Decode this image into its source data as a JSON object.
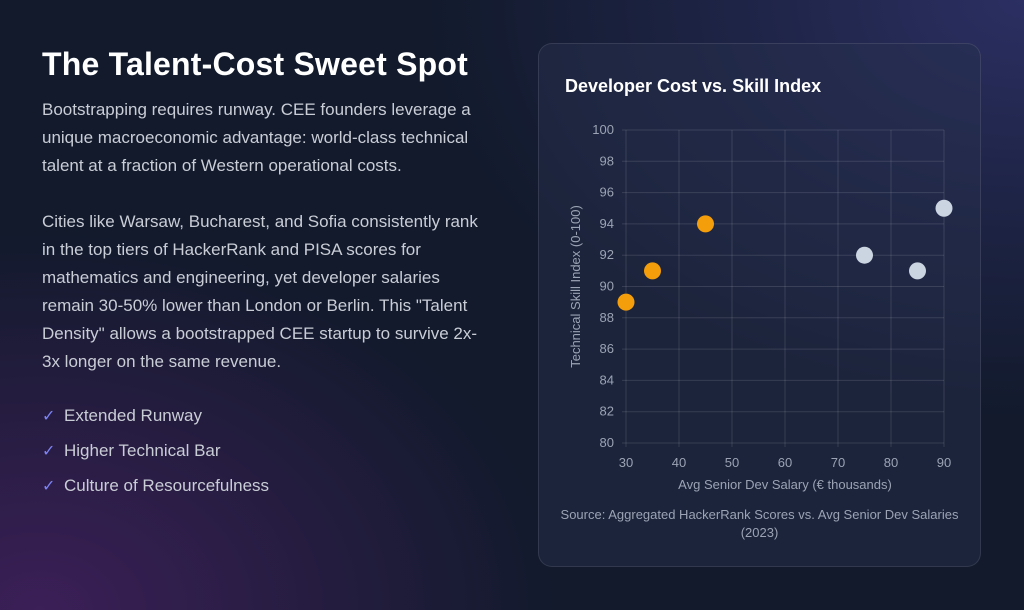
{
  "heading": "The Talent-Cost Sweet Spot",
  "paragraphs": [
    "Bootstrapping requires runway. CEE founders leverage a unique macroeconomic advantage: world-class technical talent at a fraction of Western operational costs.",
    "Cities like Warsaw, Bucharest, and Sofia consistently rank in the top tiers of HackerRank and PISA scores for mathematics and engineering, yet developer salaries remain 30-50% lower than London or Berlin. This \"Talent Density\" allows a bootstrapped CEE startup to survive 2x-3x longer on the same revenue."
  ],
  "checklist": {
    "icon": "✓",
    "items": [
      "Extended Runway",
      "Higher Technical Bar",
      "Culture of Resourcefulness"
    ]
  },
  "chart_data": {
    "type": "scatter",
    "title": "Developer Cost vs. Skill Index",
    "xlabel": "Avg Senior Dev Salary (€ thousands)",
    "ylabel": "Technical Skill Index (0-100)",
    "xlim": [
      30,
      90
    ],
    "ylim": [
      80,
      100
    ],
    "xticks": [
      30,
      40,
      50,
      60,
      70,
      80,
      90
    ],
    "yticks": [
      80,
      82,
      84,
      86,
      88,
      90,
      92,
      94,
      96,
      98,
      100
    ],
    "grid": true,
    "series": [
      {
        "color": "#f59e0b",
        "points": [
          [
            30,
            89
          ],
          [
            35,
            91
          ],
          [
            45,
            94
          ]
        ]
      },
      {
        "color": "#cbd5e1",
        "points": [
          [
            75,
            92
          ],
          [
            85,
            91
          ],
          [
            90,
            95
          ]
        ]
      }
    ],
    "source": "Source: Aggregated HackerRank Scores vs. Avg Senior Dev Salaries (2023)"
  }
}
